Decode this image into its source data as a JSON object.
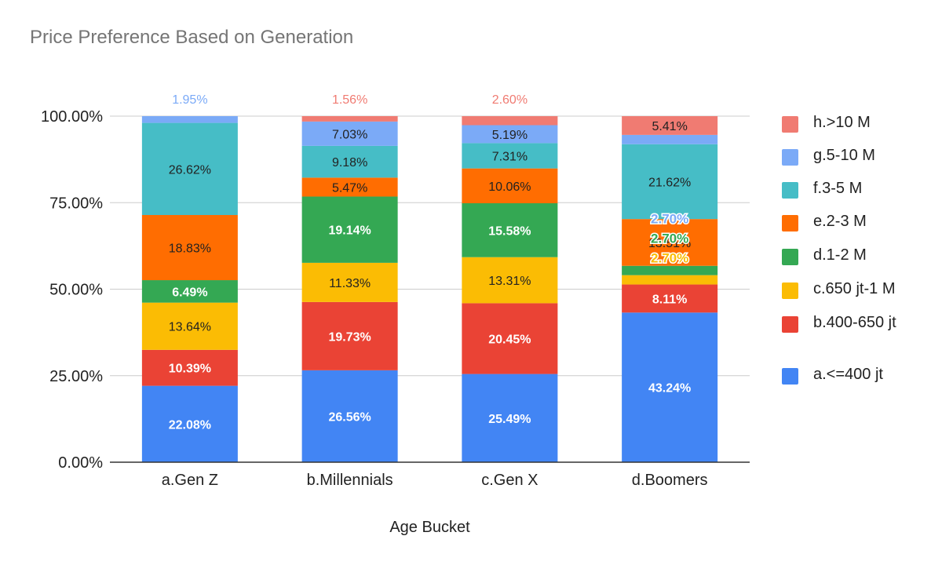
{
  "chart_data": {
    "type": "bar",
    "stacked": true,
    "normalized_percent": true,
    "title": "Price Preference Based on Generation",
    "xlabel": "Age Bucket",
    "ylabel": "",
    "ylim": [
      0,
      100
    ],
    "y_ticks": [
      "0.00%",
      "25.00%",
      "50.00%",
      "75.00%",
      "100.00%"
    ],
    "grid": true,
    "legend_position": "right",
    "categories": [
      "a.Gen Z",
      "b.Millennials",
      "c.Gen X",
      "d.Boomers"
    ],
    "series": [
      {
        "name": "a.<=400 jt",
        "color": "#4285F4",
        "label_color": "#ffffff",
        "values": [
          22.08,
          26.56,
          25.49,
          43.24
        ],
        "labels": [
          "22.08%",
          "26.56%",
          "25.49%",
          "43.24%"
        ]
      },
      {
        "name": "b.400-650 jt",
        "color": "#EA4335",
        "label_color": "#ffffff",
        "values": [
          10.39,
          19.73,
          20.45,
          8.11
        ],
        "labels": [
          "10.39%",
          "19.73%",
          "20.45%",
          "8.11%"
        ]
      },
      {
        "name": "c.650 jt-1 M",
        "color": "#FBBC04",
        "label_color": "#222222",
        "values": [
          13.64,
          11.33,
          13.31,
          2.7
        ],
        "labels": [
          "13.64%",
          "11.33%",
          "13.31%",
          "2.70%"
        ]
      },
      {
        "name": "d.1-2 M",
        "color": "#34A853",
        "label_color": "#ffffff",
        "values": [
          6.49,
          19.14,
          15.58,
          2.7
        ],
        "labels": [
          "6.49%",
          "19.14%",
          "15.58%",
          "2.70%"
        ]
      },
      {
        "name": "e.2-3 M",
        "color": "#FF6D01",
        "label_color": "#222222",
        "values": [
          18.83,
          5.47,
          10.06,
          13.51
        ],
        "labels": [
          "18.83%",
          "5.47%",
          "10.06%",
          "13.51%"
        ]
      },
      {
        "name": "f.3-5 M",
        "color": "#46BDC6",
        "label_color": "#222222",
        "values": [
          26.62,
          9.18,
          7.31,
          21.62
        ],
        "labels": [
          "26.62%",
          "9.18%",
          "7.31%",
          "21.62%"
        ]
      },
      {
        "name": "g.5-10 M",
        "color": "#7BAAF7",
        "label_color": "#222222",
        "values": [
          1.95,
          7.03,
          5.19,
          2.7
        ],
        "labels": [
          "1.95%",
          "7.03%",
          "5.19%",
          "2.70%"
        ]
      },
      {
        "name": "h.>10 M",
        "color": "#F07B72",
        "label_color": "#222222",
        "values": [
          0,
          1.56,
          2.6,
          5.41
        ],
        "labels": [
          "",
          "1.56%",
          "2.60%",
          "5.41%"
        ]
      }
    ]
  }
}
